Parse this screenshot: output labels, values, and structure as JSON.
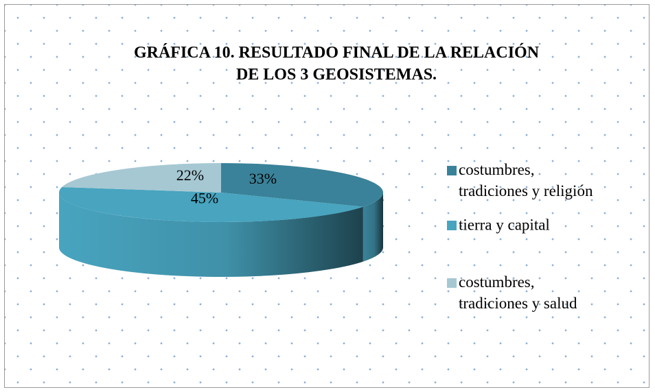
{
  "chart_data": {
    "type": "pie3d",
    "title": [
      "GRÁFICA  10. RESULTADO FINAL DE LA RELACIÓN",
      "DE LOS 3 GEOSISTEMAS."
    ],
    "categories": [
      "costumbres, tradiciones y religión",
      "tierra y capital",
      "costumbres, tradiciones y salud"
    ],
    "values": [
      33,
      45,
      22
    ],
    "value_labels": [
      "33%",
      "45%",
      "22%"
    ],
    "colors": [
      "#3a8299",
      "#48a4bf",
      "#a6c8d3"
    ],
    "legend": "right"
  }
}
